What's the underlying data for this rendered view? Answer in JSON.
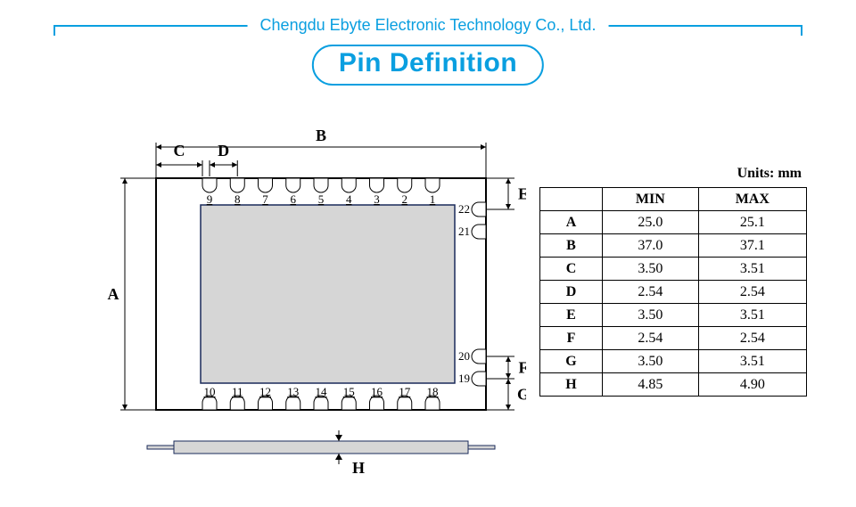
{
  "company": "Chengdu Ebyte Electronic Technology Co., Ltd.",
  "title": "Pin Definition",
  "units_label": "Units: mm",
  "colors": {
    "brand": "#0a9fe0",
    "outline": "#000000",
    "module_fill": "#d6d6d6",
    "module_stroke": "#1a2a5a",
    "table_border": "#000000"
  },
  "table": {
    "headers": [
      "",
      "MIN",
      "MAX"
    ],
    "rows": [
      {
        "label": "A",
        "min": "25.0",
        "max": "25.1"
      },
      {
        "label": "B",
        "min": "37.0",
        "max": "37.1"
      },
      {
        "label": "C",
        "min": "3.50",
        "max": "3.51"
      },
      {
        "label": "D",
        "min": "2.54",
        "max": "2.54"
      },
      {
        "label": "E",
        "min": "3.50",
        "max": "3.51"
      },
      {
        "label": "F",
        "min": "2.54",
        "max": "2.54"
      },
      {
        "label": "G",
        "min": "3.50",
        "max": "3.51"
      },
      {
        "label": "H",
        "min": "4.85",
        "max": "4.90"
      }
    ]
  },
  "diagram": {
    "labels": {
      "A": "A",
      "B": "B",
      "C": "C",
      "D": "D",
      "E": "E",
      "F": "F",
      "G": "G",
      "H": "H"
    },
    "top_pins": [
      "9",
      "8",
      "7",
      "6",
      "5",
      "4",
      "3",
      "2",
      "1"
    ],
    "bottom_pins": [
      "10",
      "11",
      "12",
      "13",
      "14",
      "15",
      "16",
      "17",
      "18"
    ],
    "right_pins_upper": [
      "22",
      "21"
    ],
    "right_pins_lower": [
      "20",
      "19"
    ],
    "stroke_width_main": 2,
    "stroke_width_thin": 1,
    "arrow_size": 6
  }
}
